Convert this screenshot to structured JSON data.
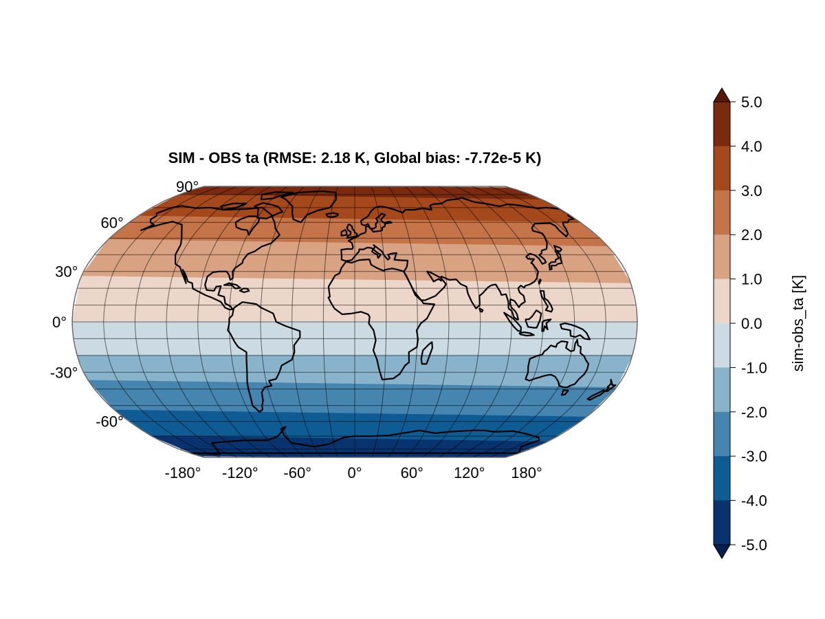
{
  "map": {
    "title": "SIM - OBS ta (RMSE: 2.18 K, Global bias: -7.72e-5 K)",
    "projection": "Robinson",
    "lon_ticks": [
      "-180°",
      "-120°",
      "-60°",
      "0°",
      "60°",
      "120°",
      "180°"
    ],
    "lat_ticks": [
      "90°",
      "60°",
      "30°",
      "0°",
      "-30°",
      "-60°"
    ],
    "gridlines": true,
    "coastlines": true,
    "border_color": "#6b6b6b"
  },
  "colorbar": {
    "label": "sim-obs_ta [K]",
    "ticks": [
      "5.0",
      "4.0",
      "3.0",
      "2.0",
      "1.0",
      "0.0",
      "-1.0",
      "-2.0",
      "-3.0",
      "-4.0",
      "-5.0"
    ],
    "levels_top_to_bottom": [
      "#7a2a0e",
      "#a5481c",
      "#c47448",
      "#d9a383",
      "#ecd5c9",
      "#ccdbe3",
      "#88b3cb",
      "#4585b0",
      "#0f5b94",
      "#08336e"
    ],
    "extend_top_color": "#5a1708",
    "extend_bottom_color": "#071f4e"
  },
  "chart_data": {
    "type": "heatmap",
    "title": "SIM - OBS ta (RMSE: 2.18 K, Global bias: -7.72e-5 K)",
    "colorbar_label": "sim-obs_ta [K]",
    "value_range": [
      -5.0,
      5.0
    ],
    "level_step": 1.0,
    "zonal_bias_K": [
      {
        "lat": 85,
        "value": 4.5
      },
      {
        "lat": 70,
        "value": 3.5
      },
      {
        "lat": 55,
        "value": 2.5
      },
      {
        "lat": 35,
        "value": 1.5
      },
      {
        "lat": 10,
        "value": 0.5
      },
      {
        "lat": -10,
        "value": -0.5
      },
      {
        "lat": -30,
        "value": -1.5
      },
      {
        "lat": -45,
        "value": -2.5
      },
      {
        "lat": -62,
        "value": -3.5
      },
      {
        "lat": -80,
        "value": -4.5
      }
    ]
  }
}
